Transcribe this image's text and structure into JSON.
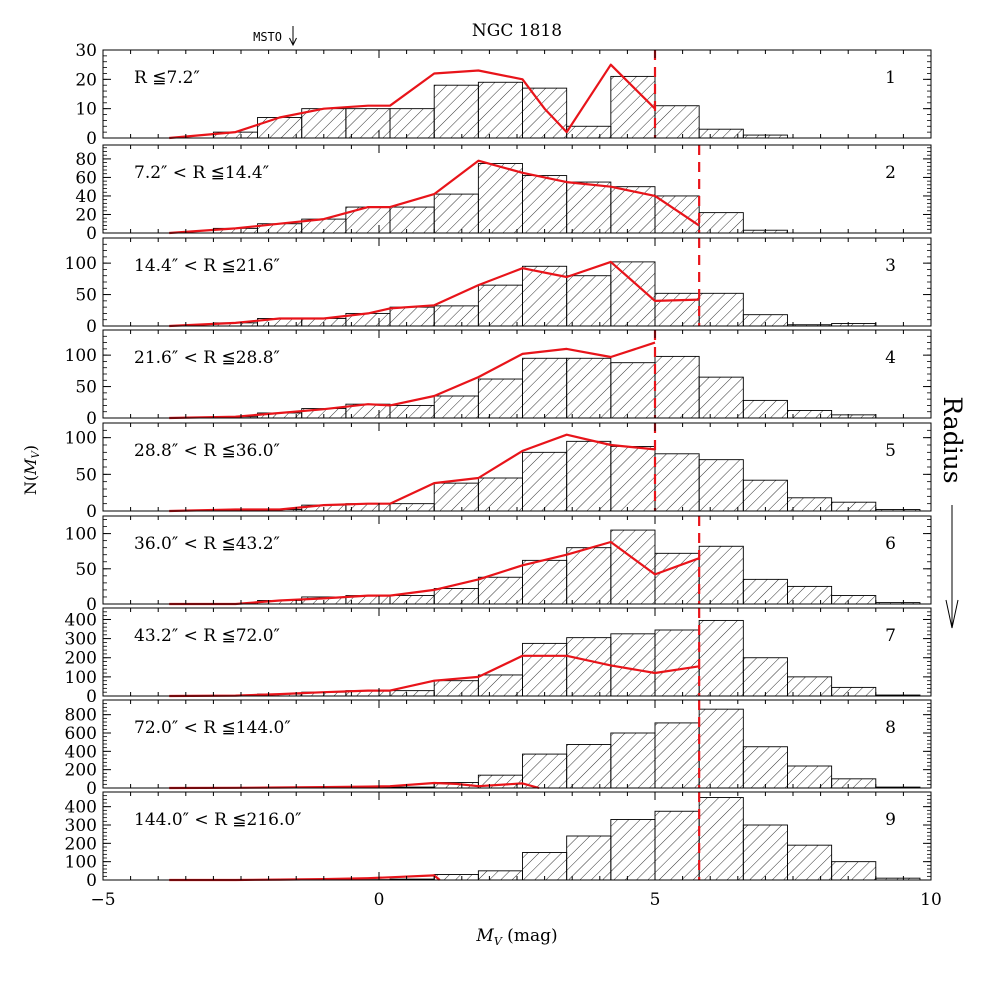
{
  "chart_data": {
    "type": "bar",
    "title": "NGC 1818",
    "annotation": "MSTO",
    "xlabel": "M_V (mag)",
    "ylabel": "N(M_V)",
    "side_label": "Radius",
    "xlim": [
      -5,
      10
    ],
    "x_ticks": [
      "−5",
      "0",
      "5",
      "10"
    ],
    "bin_left_edges": [
      -3.8,
      -3.0,
      -2.2,
      -1.4,
      -0.6,
      0.2,
      1.0,
      1.8,
      2.6,
      3.4,
      4.2,
      5.0,
      5.8,
      6.6,
      7.4,
      8.2,
      9.0
    ],
    "bin_width": 0.8,
    "colors": {
      "histogram": "#000000",
      "model": "#e8141a",
      "cutoff": "#e8141a"
    },
    "panels": [
      {
        "label": "R ≦7.2″",
        "index": "1",
        "ylim": [
          0,
          30
        ],
        "yticks": [
          "0",
          "10",
          "20",
          "30"
        ],
        "counts": [
          0,
          2,
          7,
          10,
          10,
          10,
          18,
          19,
          17,
          4,
          21,
          11,
          3,
          1,
          0,
          0,
          0
        ],
        "model_x": [
          -3.8,
          -2.6,
          -1.8,
          -1.0,
          -0.2,
          0.2,
          1.0,
          1.8,
          2.6,
          3.0,
          3.4,
          4.2,
          5.0
        ],
        "model_y": [
          0,
          2,
          7,
          10,
          11,
          11,
          22,
          23,
          20,
          10,
          2,
          25,
          10
        ],
        "cutoff": 5.0
      },
      {
        "label": "7.2″ < R ≦14.4″",
        "index": "2",
        "ylim": [
          0,
          95
        ],
        "yticks": [
          "0",
          "20",
          "40",
          "60",
          "80"
        ],
        "counts": [
          0,
          5,
          10,
          15,
          28,
          28,
          42,
          75,
          62,
          55,
          50,
          40,
          22,
          3,
          0,
          0,
          0
        ],
        "model_x": [
          -3.8,
          -2.6,
          -1.8,
          -1.0,
          -0.2,
          0.2,
          1.0,
          1.8,
          2.6,
          3.4,
          4.2,
          5.0,
          5.8
        ],
        "model_y": [
          0,
          5,
          10,
          15,
          28,
          28,
          42,
          78,
          65,
          55,
          50,
          40,
          8
        ],
        "cutoff": 5.8
      },
      {
        "label": "14.4″ < R ≦21.6″",
        "index": "3",
        "ylim": [
          0,
          140
        ],
        "yticks": [
          "0",
          "50",
          "100"
        ],
        "counts": [
          0,
          5,
          12,
          12,
          20,
          30,
          32,
          65,
          95,
          80,
          102,
          52,
          52,
          18,
          2,
          4,
          0
        ],
        "model_x": [
          -3.8,
          -2.6,
          -1.8,
          -1.0,
          -0.2,
          0.2,
          1.0,
          1.8,
          2.6,
          3.4,
          4.2,
          5.0,
          5.8
        ],
        "model_y": [
          0,
          5,
          12,
          12,
          20,
          28,
          33,
          65,
          92,
          78,
          102,
          40,
          42
        ],
        "cutoff": 5.8
      },
      {
        "label": "21.6″ < R ≦28.8″",
        "index": "4",
        "ylim": [
          0,
          140
        ],
        "yticks": [
          "0",
          "50",
          "100"
        ],
        "counts": [
          0,
          2,
          8,
          15,
          22,
          20,
          35,
          62,
          95,
          95,
          88,
          98,
          65,
          28,
          12,
          5,
          0
        ],
        "model_x": [
          -3.8,
          -2.6,
          -1.8,
          -1.0,
          -0.2,
          0.2,
          1.0,
          1.8,
          2.6,
          3.4,
          4.2,
          5.0
        ],
        "model_y": [
          0,
          2,
          8,
          14,
          22,
          20,
          35,
          65,
          102,
          110,
          97,
          120
        ],
        "cutoff": 5.0
      },
      {
        "label": "28.8″ < R ≦36.0″",
        "index": "5",
        "ylim": [
          0,
          120
        ],
        "yticks": [
          "0",
          "50",
          "100"
        ],
        "counts": [
          0,
          2,
          2,
          8,
          10,
          10,
          38,
          45,
          80,
          95,
          88,
          78,
          70,
          42,
          18,
          12,
          2
        ],
        "model_x": [
          -3.8,
          -2.6,
          -1.8,
          -1.0,
          -0.2,
          0.2,
          1.0,
          1.8,
          2.6,
          3.4,
          4.2,
          5.0
        ],
        "model_y": [
          0,
          2,
          2,
          8,
          10,
          10,
          38,
          45,
          82,
          104,
          90,
          84
        ],
        "cutoff": 5.0
      },
      {
        "label": "36.0″ < R ≦43.2″",
        "index": "6",
        "ylim": [
          0,
          125
        ],
        "yticks": [
          "0",
          "50",
          "100"
        ],
        "counts": [
          0,
          0,
          5,
          10,
          12,
          12,
          22,
          38,
          62,
          80,
          105,
          72,
          82,
          35,
          25,
          12,
          2
        ],
        "model_x": [
          -3.8,
          -2.6,
          -1.8,
          -1.0,
          -0.2,
          0.2,
          1.0,
          1.8,
          2.6,
          3.4,
          4.2,
          5.0,
          5.8
        ],
        "model_y": [
          0,
          0,
          5,
          8,
          12,
          12,
          20,
          35,
          55,
          70,
          88,
          42,
          65
        ],
        "cutoff": 5.8
      },
      {
        "label": "43.2″ < R ≦72.0″",
        "index": "7",
        "ylim": [
          0,
          460
        ],
        "yticks": [
          "0",
          "100",
          "200",
          "300",
          "400"
        ],
        "counts": [
          0,
          2,
          10,
          20,
          28,
          28,
          80,
          110,
          275,
          305,
          325,
          345,
          395,
          200,
          100,
          45,
          5
        ],
        "model_x": [
          -3.8,
          -2.6,
          -1.8,
          -1.0,
          -0.2,
          0.2,
          1.0,
          1.8,
          2.6,
          3.4,
          4.2,
          5.0,
          5.8
        ],
        "model_y": [
          0,
          2,
          10,
          20,
          28,
          28,
          80,
          100,
          210,
          210,
          160,
          120,
          155
        ],
        "cutoff": 5.8
      },
      {
        "label": "72.0″ < R ≦144.0″",
        "index": "8",
        "ylim": [
          0,
          960
        ],
        "yticks": [
          "0",
          "200",
          "400",
          "600",
          "800"
        ],
        "counts": [
          0,
          0,
          2,
          5,
          10,
          10,
          60,
          140,
          370,
          475,
          600,
          710,
          860,
          450,
          240,
          100,
          10
        ],
        "model_x": [
          -3.8,
          -2.6,
          -1.8,
          -1.0,
          -0.2,
          0.2,
          1.0,
          1.4,
          1.8,
          2.6,
          2.9
        ],
        "model_y": [
          0,
          2,
          5,
          10,
          15,
          20,
          55,
          45,
          20,
          50,
          0
        ],
        "cutoff": 5.8
      },
      {
        "label": "144.0″ < R ≦216.0″",
        "index": "9",
        "ylim": [
          0,
          480
        ],
        "yticks": [
          "0",
          "100",
          "200",
          "300",
          "400"
        ],
        "counts": [
          0,
          0,
          0,
          0,
          2,
          5,
          30,
          50,
          150,
          240,
          330,
          375,
          450,
          300,
          190,
          100,
          10
        ],
        "model_x": [
          -3.8,
          -2.6,
          -1.8,
          -1.0,
          -0.2,
          0.2,
          1.0,
          1.1
        ],
        "model_y": [
          0,
          0,
          2,
          5,
          10,
          15,
          25,
          0
        ],
        "cutoff": 5.8
      }
    ]
  }
}
